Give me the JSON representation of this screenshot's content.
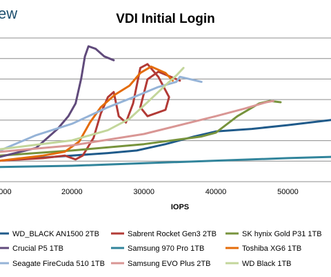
{
  "brand": {
    "text": "ew"
  },
  "chart_data": {
    "type": "line",
    "title": "VDI Initial Login",
    "xlabel": "IOPS",
    "ylabel": "",
    "xlim": [
      10000,
      56000
    ],
    "x_ticks": [
      20000,
      30000,
      40000,
      50000
    ],
    "x_tick_labels": [
      "20000",
      "30000",
      "40000",
      "50000"
    ],
    "y_gridlines": 8,
    "grid": true,
    "legend_position": "bottom",
    "series": [
      {
        "name": "WD_BLACK AN1500 2TB",
        "color": "#1f5a8a",
        "points": [
          [
            10000,
            0.1
          ],
          [
            15000,
            0.12
          ],
          [
            20000,
            0.14
          ],
          [
            25000,
            0.16
          ],
          [
            29000,
            0.18
          ],
          [
            33000,
            0.23
          ],
          [
            37000,
            0.29
          ],
          [
            40000,
            0.33
          ],
          [
            45000,
            0.35
          ],
          [
            50000,
            0.38
          ],
          [
            56000,
            0.42
          ]
        ]
      },
      {
        "name": "Sabrent Rocket Gen3 2TB",
        "color": "#b23a36",
        "points": [
          [
            10000,
            0.1
          ],
          [
            16000,
            0.12
          ],
          [
            19000,
            0.14
          ],
          [
            20500,
            0.11
          ],
          [
            21500,
            0.14
          ],
          [
            23000,
            0.28
          ],
          [
            24000,
            0.47
          ],
          [
            25000,
            0.6
          ],
          [
            25800,
            0.64
          ],
          [
            26500,
            0.45
          ],
          [
            27500,
            0.4
          ],
          [
            28500,
            0.55
          ],
          [
            29500,
            0.83
          ],
          [
            30500,
            0.86
          ],
          [
            32000,
            0.76
          ],
          [
            33500,
            0.6
          ],
          [
            33000,
            0.5
          ],
          [
            30500,
            0.45
          ],
          [
            29500,
            0.52
          ],
          [
            30500,
            0.74
          ],
          [
            32000,
            0.8
          ],
          [
            35000,
            0.73
          ]
        ]
      },
      {
        "name": "SK hynix Gold P31 1TB",
        "color": "#77933c",
        "points": [
          [
            10000,
            0.14
          ],
          [
            20000,
            0.18
          ],
          [
            30000,
            0.23
          ],
          [
            38000,
            0.29
          ],
          [
            40000,
            0.32
          ],
          [
            43000,
            0.45
          ],
          [
            46000,
            0.55
          ],
          [
            47500,
            0.57
          ],
          [
            49000,
            0.56
          ]
        ]
      },
      {
        "name": "Crucial P5 1TB",
        "color": "#604a7b",
        "points": [
          [
            10000,
            0.13
          ],
          [
            15000,
            0.2
          ],
          [
            18000,
            0.35
          ],
          [
            19500,
            0.45
          ],
          [
            20500,
            0.55
          ],
          [
            21300,
            0.75
          ],
          [
            21800,
            0.92
          ],
          [
            22300,
            1.0
          ],
          [
            23300,
            0.98
          ],
          [
            24500,
            0.92
          ],
          [
            25800,
            0.89
          ]
        ]
      },
      {
        "name": "Samsung 970 Pro 1TB",
        "color": "#31849b",
        "points": [
          [
            10000,
            0.05
          ],
          [
            20000,
            0.06
          ],
          [
            30000,
            0.08
          ],
          [
            40000,
            0.1
          ],
          [
            50000,
            0.12
          ],
          [
            56000,
            0.13
          ]
        ]
      },
      {
        "name": "Toshiba XG6 1TB",
        "color": "#e46c0a",
        "points": [
          [
            10000,
            0.1
          ],
          [
            16000,
            0.14
          ],
          [
            19000,
            0.17
          ],
          [
            21000,
            0.25
          ],
          [
            22500,
            0.4
          ],
          [
            24000,
            0.52
          ],
          [
            26000,
            0.62
          ],
          [
            28000,
            0.69
          ],
          [
            29500,
            0.79
          ],
          [
            31000,
            0.84
          ],
          [
            33000,
            0.79
          ],
          [
            34000,
            0.73
          ]
        ]
      },
      {
        "name": "Seagate FireCuda 510 1TB",
        "color": "#95b3d7",
        "points": [
          [
            10000,
            0.18
          ],
          [
            15000,
            0.3
          ],
          [
            20000,
            0.39
          ],
          [
            25000,
            0.52
          ],
          [
            29000,
            0.61
          ],
          [
            32000,
            0.68
          ],
          [
            34500,
            0.72
          ],
          [
            35000,
            0.76
          ],
          [
            36500,
            0.74
          ],
          [
            38000,
            0.72
          ]
        ]
      },
      {
        "name": "Samsung EVO Plus 2TB",
        "color": "#d99694",
        "points": [
          [
            10000,
            0.17
          ],
          [
            20000,
            0.22
          ],
          [
            30000,
            0.31
          ],
          [
            40000,
            0.45
          ],
          [
            44000,
            0.51
          ],
          [
            47000,
            0.56
          ],
          [
            48000,
            0.57
          ]
        ]
      },
      {
        "name": "WD Black 1TB",
        "color": "#c3d69b",
        "points": [
          [
            10000,
            0.19
          ],
          [
            20000,
            0.26
          ],
          [
            25000,
            0.34
          ],
          [
            28000,
            0.43
          ],
          [
            30500,
            0.56
          ],
          [
            32000,
            0.64
          ],
          [
            33500,
            0.72
          ],
          [
            34500,
            0.77
          ],
          [
            35500,
            0.83
          ]
        ]
      }
    ]
  }
}
